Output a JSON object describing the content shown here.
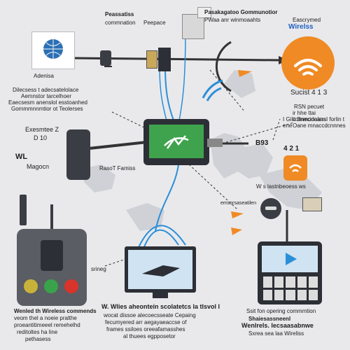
{
  "colors": {
    "background": "#e9e9ec",
    "accent_orange": "#f08a24",
    "screen_green": "#3fa34d",
    "wire_blue": "#2b8fd8",
    "dark_device": "#3a3d44",
    "light_red": "#d9342b",
    "light_green": "#3aa24a",
    "light_yellow": "#c9b23a"
  },
  "labels": {
    "top_left_title": "Peassatiss",
    "top_left_sub": "commnation",
    "top_left_sub2": "Peepace",
    "top_center_title": "Pasakagatoo Gommunotior",
    "top_center_sub": "PWaa anr winmoaahts",
    "top_right_title": "Eascrymed",
    "top_right_brand": "Wirelss",
    "left_device_label": "Adenisa",
    "left_desc_1": "Dilecsess  t adecsatelolace",
    "left_desc_2": "Aemnstor  tarcelhoer",
    "left_desc_3": "Eaecsesm anenslol esstoanhed",
    "left_desc_4": "Gommmnnmtior ot Teolerses",
    "right_id": "Sucist  4 1 3",
    "right_desc_1": "RSN pecuet",
    "right_desc_2": "ir hhe ttai commodoans",
    "right_desc_3": "I Gilit Bnecinalarsl forlin t ene",
    "right_desc_4": "Oane  mnaccdcnnnes",
    "left_mid_title": "Exesmtee Z",
    "left_mid_code": "D 10",
    "left_mid_wl": "WL",
    "left_mid_mag": "Magocn",
    "center_caption": "RasoT Famiss",
    "right_mid_code": "B93",
    "right_mid_code2": "4 2 1",
    "right_mid_line": "W s lastnbeoess ws",
    "right_small": "emsorsaseatilen",
    "left_bottom_tag": "srineg",
    "bottom_left_title": "Wenled  th  Wireless  commends",
    "bottom_left_1": "veom  thel  a  noeie  pralthe",
    "bottom_left_2": "proeantitimeeel  remehelhd",
    "bottom_left_3": "reditoltes ha line",
    "bottom_left_4": "pethasess",
    "bottom_center_title": "W.  Wlies  aheontein scolatetcs la tlsvol  l",
    "bottom_center_1": "wocat  dissoe alecoecsseate  Cepaing",
    "bottom_center_2": "fecumyered  arr  aegayaeaccse of",
    "bottom_center_3": "frames  ssiloes oreeafamasshes",
    "bottom_center_4": "al  thuees  egpposetor",
    "bottom_right_title": "Ssit  fon opering commmtion",
    "bottom_right_1": "Shaiesassneenl",
    "bottom_right_2": "Wenlrels.  lecsaasabnwe",
    "bottom_right_3": "Sxrea sea laa Wireliss"
  }
}
